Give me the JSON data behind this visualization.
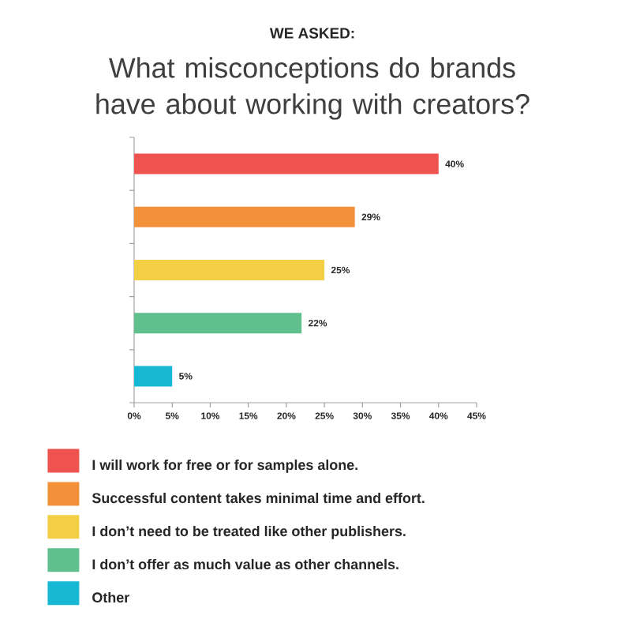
{
  "chart_data": {
    "type": "bar",
    "orientation": "horizontal",
    "subtitle": "WE ASKED:",
    "title": "What misconceptions do brands have about working with creators?",
    "categories": [
      null
    ],
    "series": [
      {
        "name": "I will work for free or for samples alone.",
        "color": "#ef5350",
        "values": [
          40
        ],
        "value_labels": [
          "40%"
        ]
      },
      {
        "name": "Successful content takes minimal time and effort.",
        "color": "#f3913b",
        "values": [
          29
        ],
        "value_labels": [
          "29%"
        ]
      },
      {
        "name": "I don’t need to be treated like other publishers.",
        "color": "#f2cf45",
        "values": [
          25
        ],
        "value_labels": [
          "25%"
        ]
      },
      {
        "name": "I don’t offer as much value as other channels.",
        "color": "#5fc08d",
        "values": [
          22
        ],
        "value_labels": [
          "22%"
        ]
      },
      {
        "name": "Other",
        "color": "#17b8d3",
        "values": [
          5
        ],
        "value_labels": [
          "5%"
        ]
      }
    ],
    "xlim": [
      0,
      45
    ],
    "xticks": [
      {
        "value": 0,
        "label": "0%"
      },
      {
        "value": 5,
        "label": "5%"
      },
      {
        "value": 10,
        "label": "10%"
      },
      {
        "value": 15,
        "label": "15%"
      },
      {
        "value": 20,
        "label": "20%"
      },
      {
        "value": 25,
        "label": "25%"
      },
      {
        "value": 30,
        "label": "30%"
      },
      {
        "value": 35,
        "label": "35%"
      },
      {
        "value": 40,
        "label": "40%"
      },
      {
        "value": 45,
        "label": "45%"
      }
    ],
    "legend": "bottom"
  }
}
